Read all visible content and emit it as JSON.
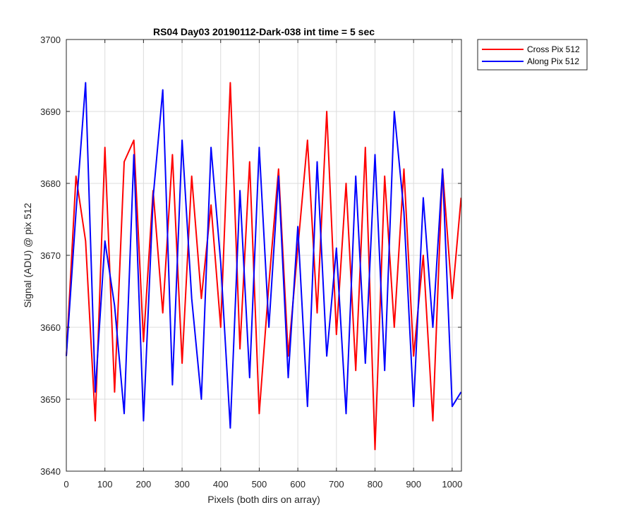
{
  "chart_data": {
    "type": "line",
    "title": "RS04 Day03 20190112-Dark-038 int time = 5 sec",
    "xlabel": "Pixels (both dirs on array)",
    "ylabel": "Signal (ADU) @ pix 512",
    "xlim": [
      0,
      1024
    ],
    "ylim": [
      3640,
      3700
    ],
    "xticks": [
      0,
      100,
      200,
      300,
      400,
      500,
      600,
      700,
      800,
      900,
      1000
    ],
    "yticks": [
      3640,
      3650,
      3660,
      3670,
      3680,
      3690,
      3700
    ],
    "grid": true,
    "legend": "outside-top-right",
    "x": [
      0,
      25,
      50,
      75,
      100,
      125,
      150,
      175,
      200,
      225,
      250,
      275,
      300,
      325,
      350,
      375,
      400,
      425,
      450,
      475,
      500,
      525,
      550,
      575,
      600,
      625,
      650,
      675,
      700,
      725,
      750,
      775,
      800,
      825,
      850,
      875,
      900,
      925,
      950,
      975,
      1000,
      1023
    ],
    "series": [
      {
        "name": "Cross Pix 512",
        "color": "#ff0000",
        "values": [
          3656,
          3681,
          3672,
          3647,
          3685,
          3651,
          3683,
          3686,
          3658,
          3679,
          3662,
          3684,
          3655,
          3681,
          3664,
          3677,
          3660,
          3694,
          3657,
          3683,
          3648,
          3666,
          3682,
          3656,
          3671,
          3686,
          3662,
          3690,
          3659,
          3680,
          3654,
          3685,
          3643,
          3681,
          3660,
          3682,
          3656,
          3670,
          3647,
          3682,
          3664,
          3678
        ]
      },
      {
        "name": "Along Pix 512",
        "color": "#0000ff",
        "values": [
          3656,
          3676,
          3694,
          3651,
          3672,
          3663,
          3648,
          3684,
          3647,
          3678,
          3693,
          3652,
          3686,
          3664,
          3650,
          3685,
          3669,
          3646,
          3679,
          3653,
          3685,
          3660,
          3681,
          3653,
          3674,
          3649,
          3683,
          3656,
          3671,
          3648,
          3681,
          3655,
          3684,
          3654,
          3690,
          3676,
          3649,
          3678,
          3660,
          3682,
          3649,
          3651
        ]
      }
    ]
  }
}
